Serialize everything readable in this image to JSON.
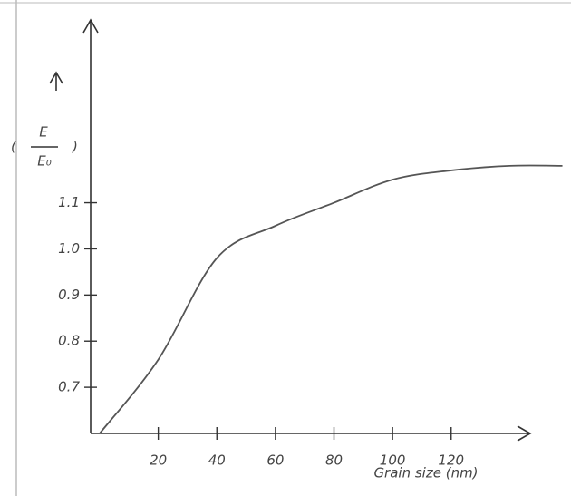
{
  "chart_data": {
    "type": "line",
    "xlabel": "Grain size (nm)",
    "ylabel": {
      "numerator": "E",
      "denominator": "E₀"
    },
    "x": [
      0,
      20,
      40,
      60,
      80,
      100,
      120,
      140,
      158
    ],
    "series": [
      {
        "color": "#555555",
        "values": [
          0.6,
          0.76,
          0.98,
          1.05,
          1.1,
          1.15,
          1.17,
          1.18,
          1.18
        ]
      }
    ],
    "xlim": [
      0,
      147
    ],
    "ylim": [
      0.6,
      1.5
    ],
    "xticks": [
      20,
      40,
      60,
      80,
      100,
      120
    ],
    "yticks": [
      0.7,
      0.8,
      0.9,
      {
        "value": 1,
        "label": "1.0"
      },
      1.1
    ]
  }
}
